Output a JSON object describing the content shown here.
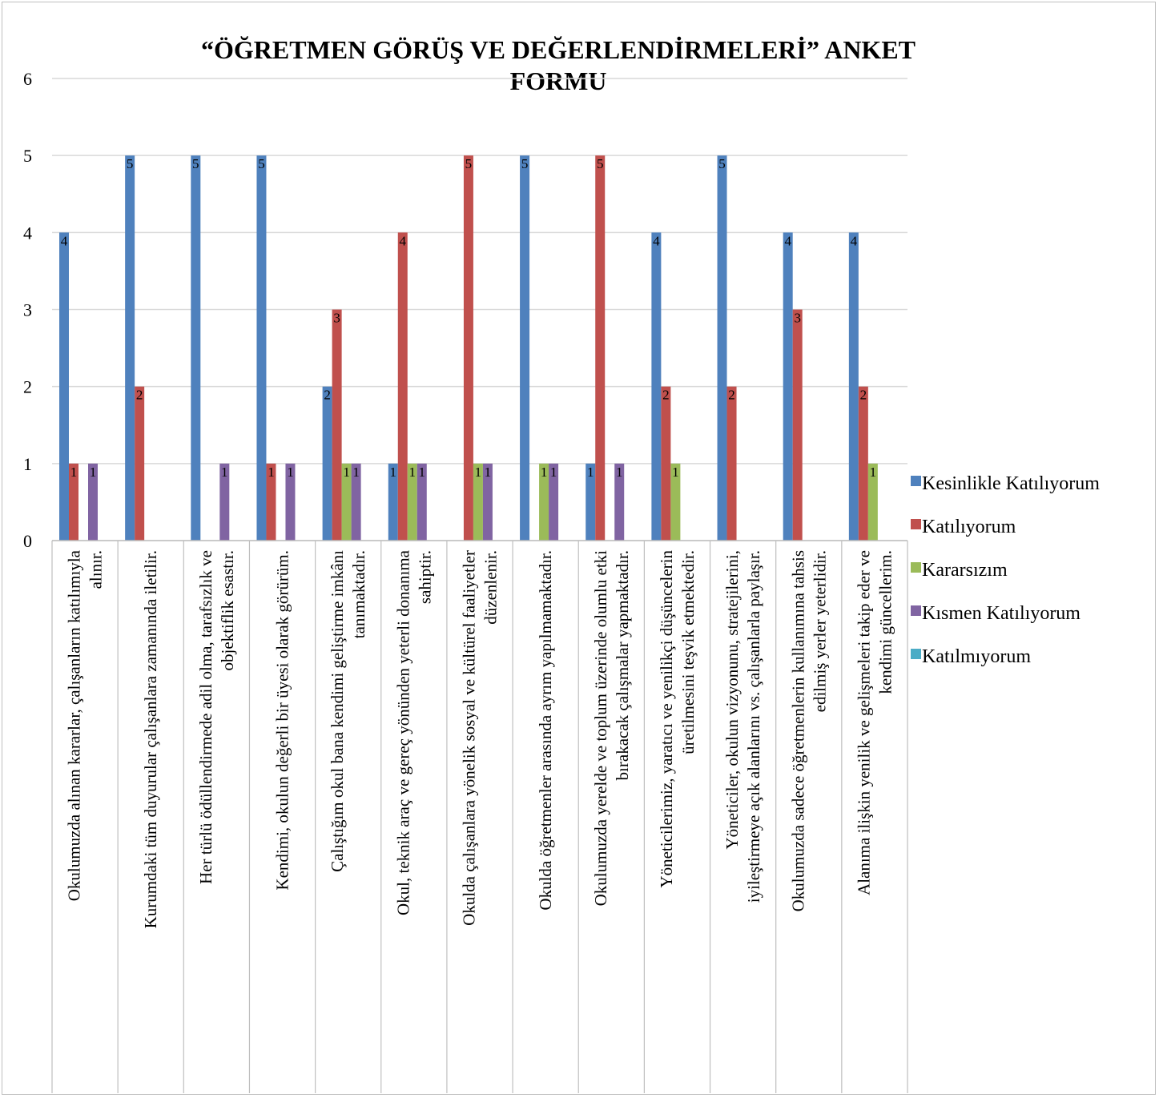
{
  "chart_data": {
    "type": "bar",
    "title_lines": [
      "“ÖĞRETMEN GÖRÜŞ VE DEĞERLENDİRMELERİ” ANKET",
      "FORMU"
    ],
    "ylim": [
      0,
      6
    ],
    "yticks": [
      "0",
      "1",
      "2",
      "3",
      "4",
      "5",
      "6"
    ],
    "grid": true,
    "legend_position": "right",
    "categories": [
      [
        "Okulumuzda alınan kararlar, çalışanların katılımıyla",
        "alınır."
      ],
      [
        "Kurumdaki tüm duyurular çalışanlara zamanında iletilir."
      ],
      [
        "Her türlü ödüllendirmede adil olma, tarafsızlık ve",
        "objektiflik esastır."
      ],
      [
        "Kendimi, okulun değerli bir üyesi olarak görürüm."
      ],
      [
        "Çalıştığım okul bana kendimi geliştirme imkânı",
        "tanımaktadır."
      ],
      [
        "Okul, teknik araç ve gereç yönünden yeterli donanıma",
        "sahiptir."
      ],
      [
        "Okulda çalışanlara yönelik sosyal ve kültürel faaliyetler",
        "düzenlenir."
      ],
      [
        "Okulda öğretmenler arasında ayrım yapılmamaktadır."
      ],
      [
        "Okulumuzda yerelde ve toplum üzerinde olumlu etki",
        "bırakacak çalışmalar yapmaktadır."
      ],
      [
        "Yöneticilerimiz, yaratıcı ve yenilikçi düşüncelerin",
        "üretilmesini teşvik etmektedir."
      ],
      [
        "Yöneticiler, okulun vizyonunu, stratejilerini,",
        "iyileştirmeye açık alanlarını vs. çalışanlarla paylaşır."
      ],
      [
        "Okulumuzda sadece öğretmenlerin kullanımına tahsis",
        "edilmiş yerler yeterlidir."
      ],
      [
        "Alanıma ilişkin yenilik ve gelişmeleri takip eder ve",
        "kendimi güncellerim."
      ]
    ],
    "series": [
      {
        "name": "Kesinlikle Katılıyorum",
        "color": "#4f81bd",
        "values": [
          4,
          5,
          5,
          5,
          2,
          1,
          0,
          5,
          1,
          4,
          5,
          4,
          4
        ]
      },
      {
        "name": "Katılıyorum",
        "color": "#c0504d",
        "values": [
          1,
          2,
          0,
          1,
          3,
          4,
          5,
          0,
          5,
          2,
          2,
          3,
          2
        ]
      },
      {
        "name": "Kararsızım",
        "color": "#9bbb59",
        "values": [
          0,
          0,
          0,
          0,
          1,
          1,
          1,
          1,
          0,
          1,
          0,
          0,
          1
        ]
      },
      {
        "name": "Kısmen Katılıyorum",
        "color": "#8064a2",
        "values": [
          1,
          0,
          1,
          1,
          1,
          1,
          1,
          1,
          1,
          0,
          0,
          0,
          0
        ]
      },
      {
        "name": "Katılmıyorum",
        "color": "#4bacc6",
        "values": [
          0,
          0,
          0,
          0,
          0,
          0,
          0,
          0,
          0,
          0,
          0,
          0,
          0
        ]
      }
    ]
  }
}
